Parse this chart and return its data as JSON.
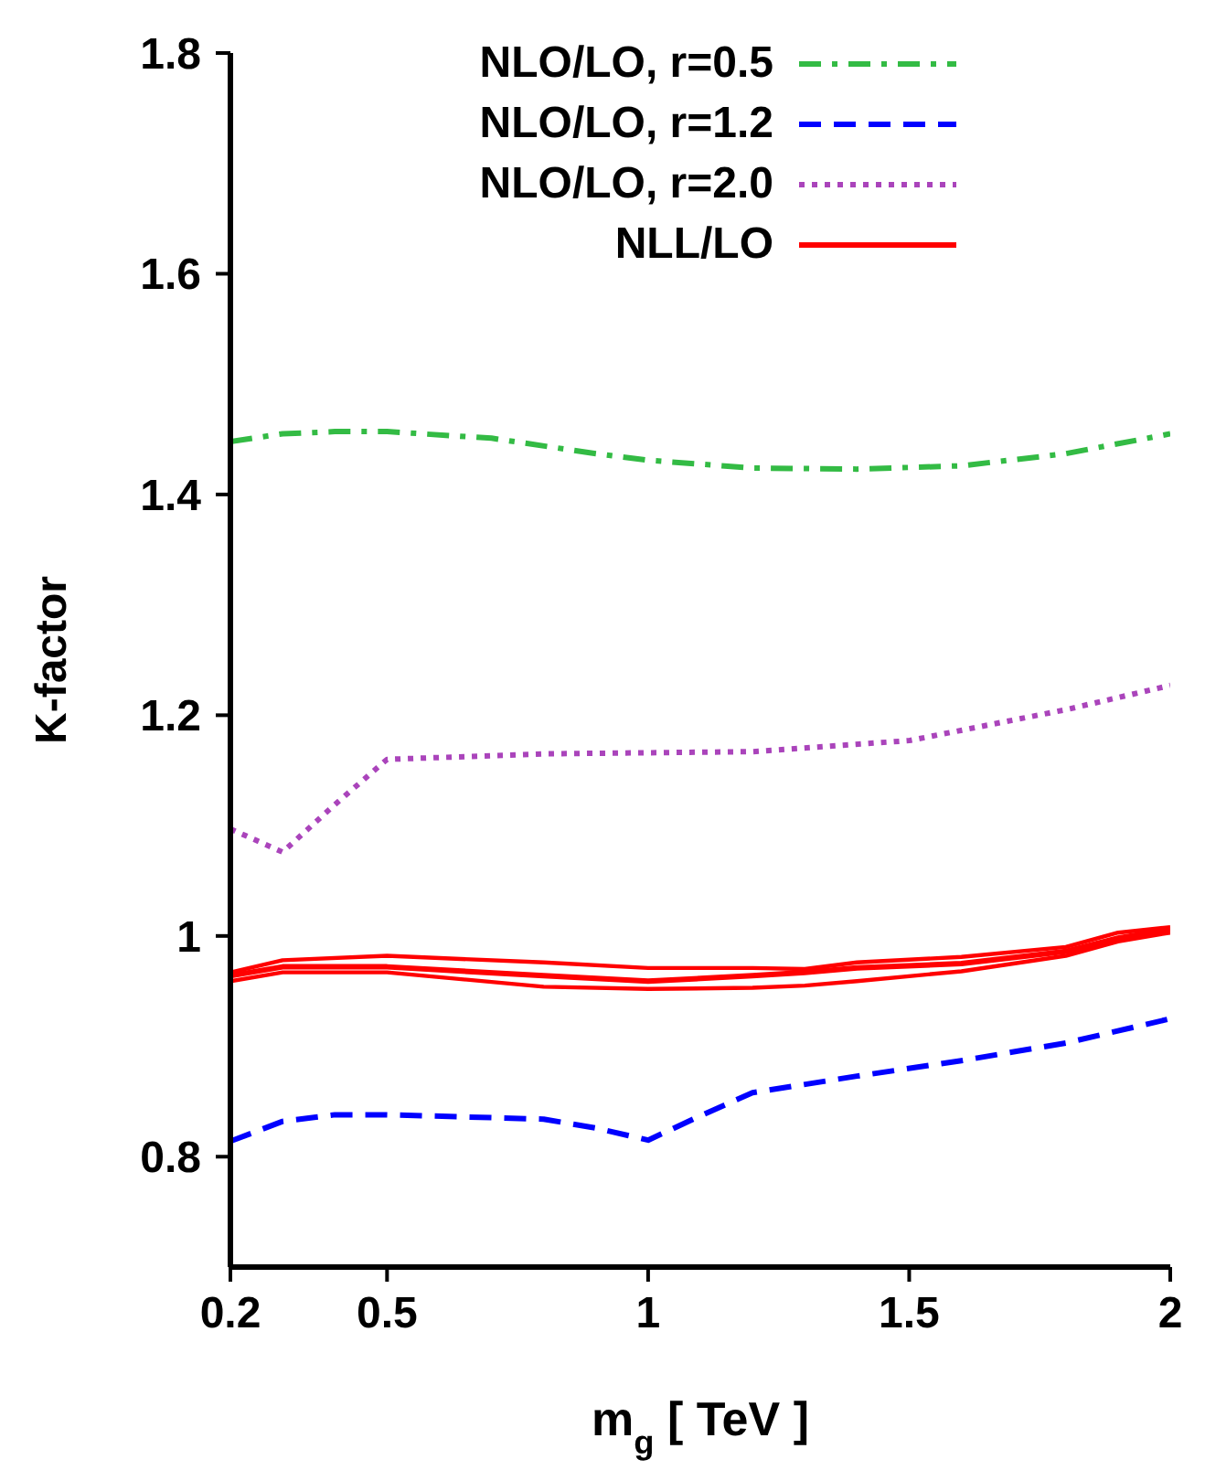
{
  "chart_data": {
    "type": "line",
    "xlabel": "m$_{g}$  [ TeV ]",
    "ylabel": "K-factor",
    "xlim": [
      0.2,
      2
    ],
    "xticks": [
      0.2,
      0.5,
      1,
      1.5,
      2
    ],
    "ylim": [
      0.7,
      1.8
    ],
    "yticks": [
      0.8,
      1,
      1.2,
      1.4,
      1.6,
      1.8
    ],
    "grid": false,
    "legend": "top right",
    "marker": "none",
    "series": [
      {
        "name": "NLO/LO, r=0.5",
        "color": "#33bb44",
        "line_style": "dashdot",
        "x": [
          0.2,
          0.3,
          0.4,
          0.5,
          0.7,
          0.9,
          1.0,
          1.2,
          1.4,
          1.6,
          1.8,
          2.0
        ],
        "values": [
          1.448,
          1.455,
          1.457,
          1.457,
          1.451,
          1.437,
          1.431,
          1.424,
          1.423,
          1.426,
          1.437,
          1.455
        ]
      },
      {
        "name": "NLO/LO, r=1.2",
        "color": "#0000ff",
        "line_style": "dashed",
        "x": [
          0.2,
          0.3,
          0.4,
          0.5,
          0.8,
          0.9,
          1.0,
          1.1,
          1.2,
          1.4,
          1.6,
          1.8,
          2.0
        ],
        "values": [
          0.814,
          0.832,
          0.838,
          0.838,
          0.834,
          0.826,
          0.815,
          0.837,
          0.858,
          0.873,
          0.887,
          0.903,
          0.925
        ]
      },
      {
        "name": "NLO/LO, r=2.0",
        "color": "#aa44bb",
        "line_style": "dotted",
        "x": [
          0.2,
          0.3,
          0.4,
          0.5,
          0.8,
          1.2,
          1.5,
          1.8,
          2.0
        ],
        "values": [
          1.097,
          1.076,
          1.119,
          1.16,
          1.165,
          1.167,
          1.177,
          1.205,
          1.227
        ]
      },
      {
        "name": "NLL/LO",
        "color": "#ff0000",
        "line_style": "solid",
        "x": [
          0.2,
          0.3,
          0.5,
          0.8,
          1.0,
          1.2,
          1.3,
          1.4,
          1.6,
          1.8,
          1.9,
          2.0
        ],
        "values": [
          0.964,
          0.972,
          0.972,
          0.964,
          0.959,
          0.964,
          0.967,
          0.971,
          0.975,
          0.986,
          0.998,
          1.006
        ]
      },
      {
        "color": "#ff0000",
        "line_style": "solid",
        "x": [
          0.2,
          0.3,
          0.5,
          0.8,
          1.0,
          1.2,
          1.3,
          1.4,
          1.6,
          1.8,
          1.9,
          2.0
        ],
        "values": [
          0.959,
          0.967,
          0.967,
          0.954,
          0.952,
          0.953,
          0.955,
          0.959,
          0.968,
          0.982,
          0.995,
          1.003
        ]
      },
      {
        "color": "#ff0000",
        "line_style": "solid",
        "x": [
          0.2,
          0.3,
          0.5,
          0.8,
          1.0,
          1.2,
          1.3,
          1.4,
          1.6,
          1.8,
          1.9,
          2.0
        ],
        "values": [
          0.967,
          0.978,
          0.982,
          0.976,
          0.971,
          0.971,
          0.97,
          0.976,
          0.981,
          0.99,
          1.003,
          1.008
        ]
      }
    ]
  }
}
